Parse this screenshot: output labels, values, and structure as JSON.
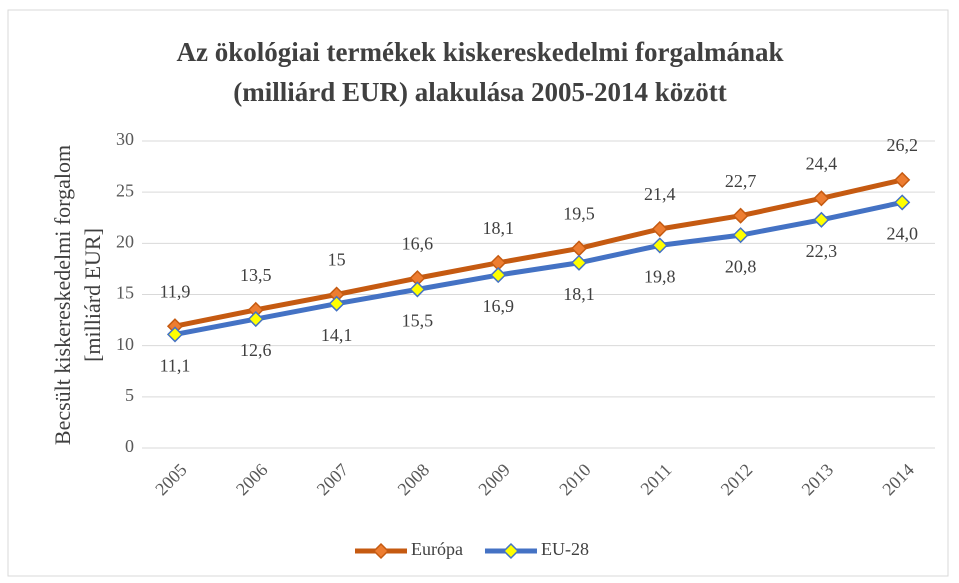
{
  "chart_data": {
    "type": "line",
    "title": [
      "Az ökológiai termékek kiskereskedelmi forgalmának",
      "(milliárd EUR) alakulása 2005-2014 között"
    ],
    "ylabel": [
      "Becsült kiskereskedelmi forgalom",
      "[milliárd EUR]"
    ],
    "categories": [
      "2005",
      "2006",
      "2007",
      "2008",
      "2009",
      "2010",
      "2011",
      "2012",
      "2013",
      "2014"
    ],
    "series": [
      {
        "name": "Európa",
        "color": "#c55a11",
        "marker_color": "#ed7d31",
        "values": [
          11.9,
          13.5,
          15,
          16.6,
          18.1,
          19.5,
          21.4,
          22.7,
          24.4,
          26.2
        ],
        "value_labels": [
          "11,9",
          "13,5",
          "15",
          "16,6",
          "18,1",
          "19,5",
          "21,4",
          "22,7",
          "24,4",
          "26,2"
        ]
      },
      {
        "name": "EU-28",
        "color": "#4472c4",
        "marker_color": "#ffff00",
        "values": [
          11.1,
          12.6,
          14.1,
          15.5,
          16.9,
          18.1,
          19.8,
          20.8,
          22.3,
          24.0
        ],
        "value_labels": [
          "11,1",
          "12,6",
          "14,1",
          "15,5",
          "16,9",
          "18,1",
          "19,8",
          "20,8",
          "22,3",
          "24,0"
        ]
      }
    ],
    "ylim": [
      0,
      30
    ],
    "yticks": [
      0,
      5,
      10,
      15,
      20,
      25,
      30
    ],
    "grid": true,
    "legend": "bottom"
  }
}
